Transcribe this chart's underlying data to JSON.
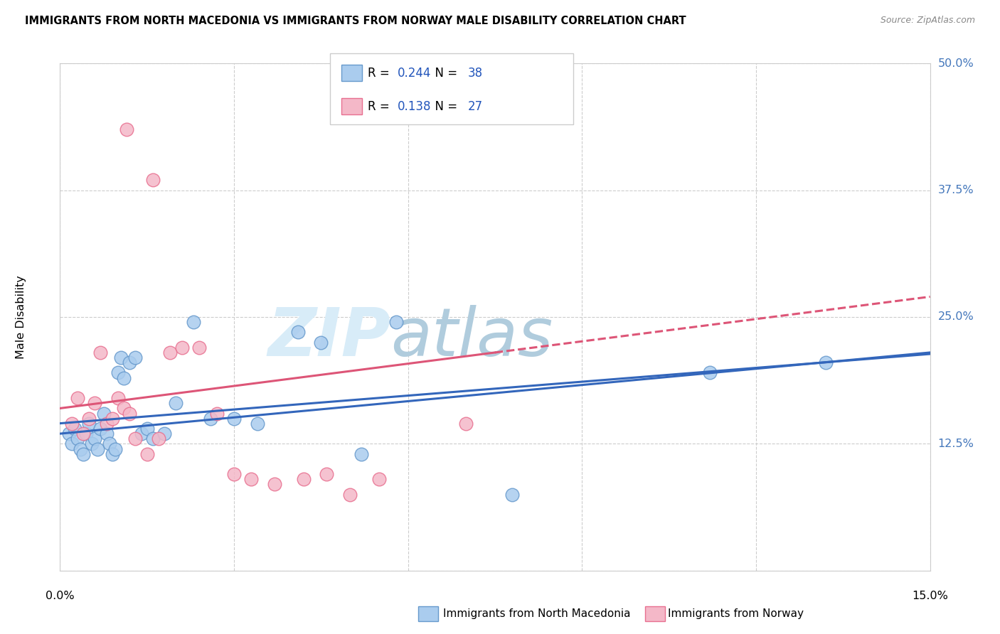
{
  "title": "IMMIGRANTS FROM NORTH MACEDONIA VS IMMIGRANTS FROM NORWAY MALE DISABILITY CORRELATION CHART",
  "source": "Source: ZipAtlas.com",
  "ylabel": "Male Disability",
  "xlim": [
    0.0,
    15.0
  ],
  "ylim": [
    0.0,
    50.0
  ],
  "yticks": [
    0.0,
    12.5,
    25.0,
    37.5,
    50.0
  ],
  "xticks": [
    0.0,
    3.0,
    6.0,
    9.0,
    12.0,
    15.0
  ],
  "R_blue": 0.244,
  "N_blue": 38,
  "R_pink": 0.138,
  "N_pink": 27,
  "blue_fill": "#aaccee",
  "blue_edge": "#6699cc",
  "pink_fill": "#f4b8c8",
  "pink_edge": "#e87090",
  "trend_blue_color": "#3366bb",
  "trend_pink_color": "#dd5577",
  "grid_color": "#cccccc",
  "label_color": "#4477bb",
  "legend_val_color": "#2255bb",
  "bg_color": "#ffffff",
  "blue_x": [
    0.15,
    0.2,
    0.25,
    0.3,
    0.35,
    0.4,
    0.45,
    0.5,
    0.55,
    0.6,
    0.65,
    0.7,
    0.75,
    0.8,
    0.85,
    0.9,
    0.95,
    1.0,
    1.05,
    1.1,
    1.2,
    1.3,
    1.4,
    1.5,
    1.6,
    1.8,
    2.0,
    2.3,
    2.6,
    3.0,
    3.4,
    4.1,
    4.5,
    5.2,
    5.8,
    7.8,
    11.2,
    13.2
  ],
  "blue_y": [
    13.5,
    12.5,
    14.0,
    13.0,
    12.0,
    11.5,
    13.5,
    14.5,
    12.5,
    13.0,
    12.0,
    14.0,
    15.5,
    13.5,
    12.5,
    11.5,
    12.0,
    19.5,
    21.0,
    19.0,
    20.5,
    21.0,
    13.5,
    14.0,
    13.0,
    13.5,
    16.5,
    24.5,
    15.0,
    15.0,
    14.5,
    23.5,
    22.5,
    11.5,
    24.5,
    7.5,
    19.5,
    20.5
  ],
  "pink_x": [
    0.2,
    0.3,
    0.4,
    0.5,
    0.6,
    0.7,
    0.8,
    0.9,
    1.0,
    1.1,
    1.2,
    1.3,
    1.5,
    1.7,
    1.9,
    2.1,
    2.4,
    2.7,
    3.0,
    3.3,
    3.7,
    4.2,
    4.6,
    5.0,
    5.5,
    7.0,
    1.6
  ],
  "pink_y": [
    14.5,
    17.0,
    13.5,
    15.0,
    16.5,
    21.5,
    14.5,
    15.0,
    17.0,
    16.0,
    15.5,
    13.0,
    11.5,
    13.0,
    21.5,
    22.0,
    22.0,
    15.5,
    9.5,
    9.0,
    8.5,
    9.0,
    9.5,
    7.5,
    9.0,
    14.5,
    38.5
  ],
  "pink_solid_end": 7.5,
  "pink_x_outlier": 1.15,
  "pink_y_outlier": 43.5
}
